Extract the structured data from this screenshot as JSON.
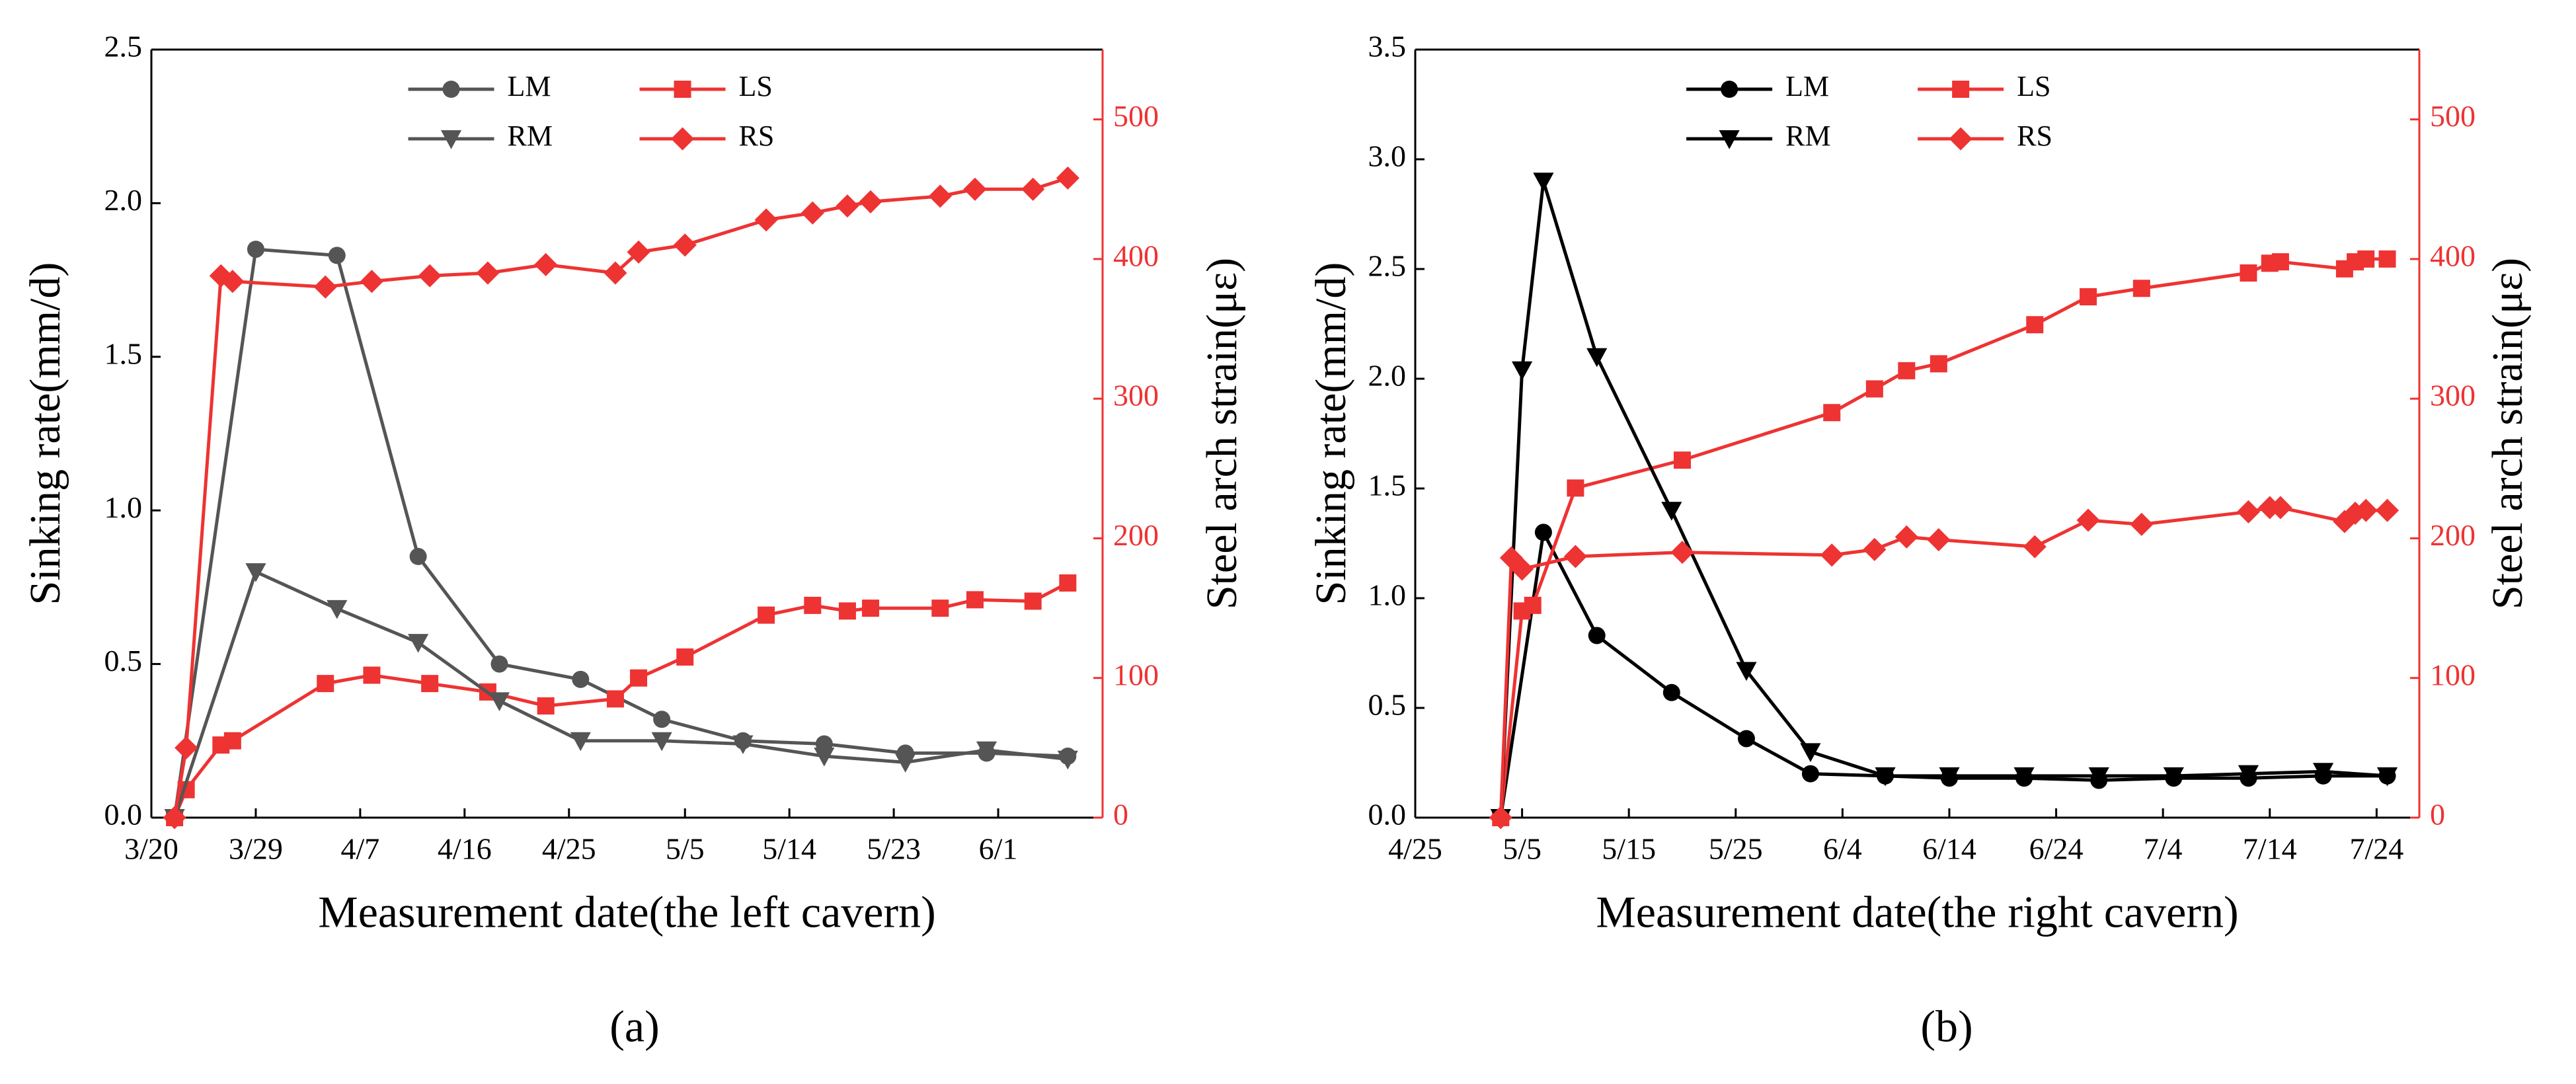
{
  "chart_data": [
    {
      "type": "line",
      "panel_label": "(a)",
      "xlabel": "Measurement date(the left cavern)",
      "ylabel": "Sinking rate(mm/d)",
      "y2label": "Steel arch strain(με)",
      "xlim": [
        "3/20",
        "6/10"
      ],
      "xticks": [
        "3/20",
        "3/29",
        "4/7",
        "4/16",
        "4/25",
        "5/5",
        "5/14",
        "5/23",
        "6/1"
      ],
      "ylim": [
        0,
        2.5
      ],
      "yticks": [
        {
          "value": 0,
          "label": "0.0"
        },
        0.5,
        {
          "value": 1,
          "label": "1.0"
        },
        1.5,
        {
          "value": 2,
          "label": "2.0"
        },
        2.5
      ],
      "y2lim": [
        0,
        550
      ],
      "y2ticks": [
        0,
        100,
        200,
        300,
        400,
        500
      ],
      "series": [
        {
          "name": "LM",
          "color": "#555555",
          "marker": "circle",
          "x": [
            "3/22",
            "3/29",
            "4/5",
            "4/12",
            "4/19",
            "4/26",
            "5/3",
            "5/10",
            "5/17",
            "5/24",
            "5/31",
            "6/7"
          ],
          "values": [
            0,
            1.85,
            1.83,
            0.85,
            0.5,
            0.45,
            0.32,
            0.25,
            0.24,
            0.21,
            0.21,
            0.2
          ]
        },
        {
          "name": "LS",
          "color": "#ee3333",
          "marker": "square",
          "axis": "y2",
          "x": [
            "3/22",
            "3/23",
            "3/26",
            "3/27",
            "4/4",
            "4/8",
            "4/13",
            "4/18",
            "4/23",
            "4/29",
            "5/1",
            "5/5",
            "5/12",
            "5/16",
            "5/19",
            "5/21",
            "5/27",
            "5/30",
            "6/4",
            "6/7"
          ],
          "values": [
            0,
            20,
            52,
            55,
            96,
            102,
            96,
            90,
            80,
            85,
            100,
            115,
            145,
            152,
            148,
            150,
            150,
            156,
            155,
            168
          ]
        },
        {
          "name": "RM",
          "color": "#555555",
          "marker": "triangle-down",
          "x": [
            "3/22",
            "3/29",
            "4/5",
            "4/12",
            "4/19",
            "4/26",
            "5/3",
            "5/10",
            "5/17",
            "5/24",
            "5/31",
            "6/7"
          ],
          "values": [
            0,
            0.8,
            0.68,
            0.57,
            0.38,
            0.25,
            0.25,
            0.24,
            0.2,
            0.18,
            0.22,
            0.19
          ]
        },
        {
          "name": "RS",
          "color": "#ee3333",
          "marker": "diamond",
          "axis": "y2",
          "x": [
            "3/22",
            "3/23",
            "3/26",
            "3/27",
            "4/4",
            "4/8",
            "4/13",
            "4/18",
            "4/23",
            "4/29",
            "5/1",
            "5/5",
            "5/12",
            "5/16",
            "5/19",
            "5/21",
            "5/27",
            "5/30",
            "6/4",
            "6/7"
          ],
          "values": [
            0,
            50,
            388,
            384,
            380,
            384,
            388,
            390,
            396,
            390,
            405,
            410,
            428,
            433,
            438,
            441,
            445,
            450,
            450,
            458
          ]
        }
      ]
    },
    {
      "type": "line",
      "panel_label": "(b)",
      "xlabel": "Measurement date(the right cavern)",
      "ylabel": "Sinking rate(mm/d)",
      "y2label": "Steel arch strain(με)",
      "xlim": [
        "4/25",
        "7/28"
      ],
      "xticks": [
        "4/25",
        "5/5",
        "5/15",
        "5/25",
        "6/4",
        "6/14",
        "6/24",
        "7/4",
        "7/14",
        "7/24"
      ],
      "ylim": [
        0,
        3.5
      ],
      "yticks": [
        {
          "value": 0,
          "label": "0.0"
        },
        0.5,
        {
          "value": 1,
          "label": "1.0"
        },
        1.5,
        {
          "value": 2,
          "label": "2.0"
        },
        2.5,
        {
          "value": 3,
          "label": "3.0"
        },
        3.5
      ],
      "y2lim": [
        0,
        550
      ],
      "y2ticks": [
        0,
        100,
        200,
        300,
        400,
        500
      ],
      "series": [
        {
          "name": "LM",
          "color": "#000000",
          "marker": "circle",
          "x": [
            "5/3",
            "5/7",
            "5/12",
            "5/19",
            "5/26",
            "6/1",
            "6/8",
            "6/14",
            "6/21",
            "6/28",
            "7/5",
            "7/12",
            "7/19",
            "7/25"
          ],
          "values": [
            0,
            1.3,
            0.83,
            0.57,
            0.36,
            0.2,
            0.19,
            0.18,
            0.18,
            0.17,
            0.18,
            0.18,
            0.19,
            0.19
          ]
        },
        {
          "name": "LS",
          "color": "#ee3333",
          "marker": "square",
          "axis": "y2",
          "x": [
            "5/3",
            "5/5",
            "5/6",
            "5/10",
            "5/20",
            "6/3",
            "6/7",
            "6/10",
            "6/13",
            "6/22",
            "6/27",
            "7/2",
            "7/12",
            "7/14",
            "7/15",
            "7/21",
            "7/22",
            "7/23",
            "7/25"
          ],
          "values": [
            0,
            148,
            152,
            236,
            256,
            290,
            307,
            320,
            325,
            353,
            373,
            379,
            390,
            397,
            398,
            393,
            398,
            400,
            400
          ]
        },
        {
          "name": "RM",
          "color": "#000000",
          "marker": "triangle-down",
          "x": [
            "5/3",
            "5/5",
            "5/7",
            "5/12",
            "5/19",
            "5/26",
            "6/1",
            "6/8",
            "6/14",
            "6/21",
            "6/28",
            "7/5",
            "7/12",
            "7/19",
            "7/25"
          ],
          "values": [
            0,
            2.04,
            2.9,
            2.1,
            1.4,
            0.67,
            0.3,
            0.19,
            0.19,
            0.19,
            0.19,
            0.19,
            0.2,
            0.21,
            0.19
          ]
        },
        {
          "name": "RS",
          "color": "#ee3333",
          "marker": "diamond",
          "axis": "y2",
          "x": [
            "5/3",
            "5/4",
            "5/5",
            "5/10",
            "5/20",
            "6/3",
            "6/7",
            "6/10",
            "6/13",
            "6/22",
            "6/27",
            "7/2",
            "7/12",
            "7/14",
            "7/15",
            "7/21",
            "7/22",
            "7/23",
            "7/25"
          ],
          "values": [
            0,
            186,
            178,
            187,
            190,
            188,
            192,
            201,
            199,
            194,
            213,
            210,
            219,
            222,
            222,
            212,
            218,
            220,
            220
          ]
        }
      ]
    }
  ]
}
